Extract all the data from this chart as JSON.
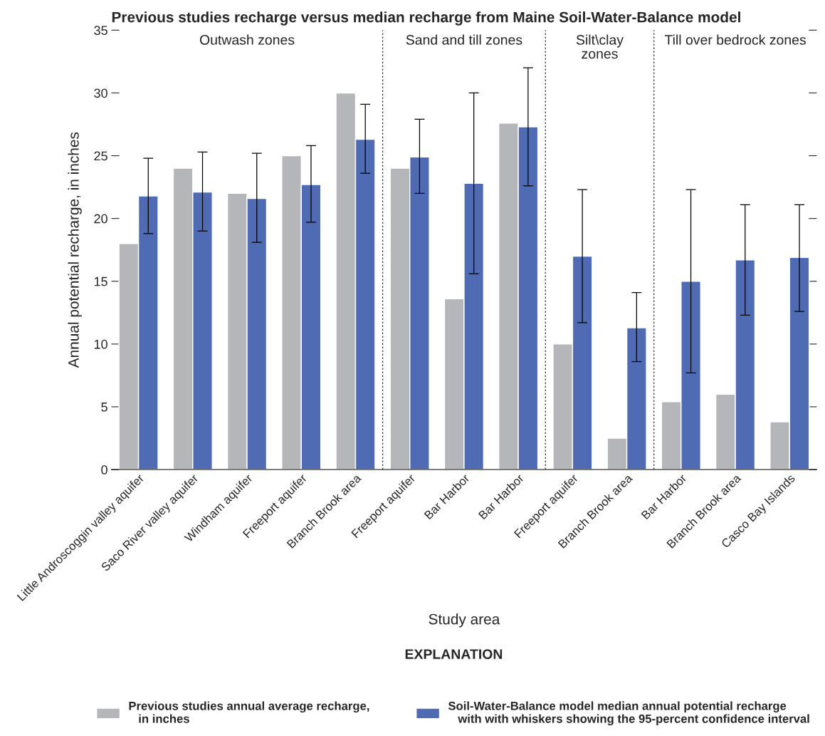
{
  "chart_data": {
    "type": "bar",
    "title": "Previous studies recharge versus median recharge from Maine Soil-Water-Balance model",
    "xlabel": "Study area",
    "ylabel": "Annual potential recharge, in inches",
    "legend_title": "EXPLANATION",
    "categories": [
      "Little Androscoggin valley aquifer",
      "Saco River valley aquifer",
      "Windham aquifer",
      "Freeport aquifer",
      "Branch Brook area",
      "Freeport aquifer",
      "Bar Harbor",
      "Bar Harbor",
      "Freeport aquifer",
      "Branch Brook area",
      "Bar Harbor",
      "Branch Brook area",
      "Casco Bay Islands"
    ],
    "series": [
      {
        "name": "Previous studies annual average recharge,\n   in inches",
        "color": "#b5b6ba",
        "values": [
          18,
          24,
          22,
          25,
          30,
          24,
          13.6,
          27.6,
          10,
          2.5,
          5.4,
          6,
          3.8
        ]
      },
      {
        "name": "Soil-Water-Balance model median annual potential recharge\n   with with whiskers showing the 95-percent confidence interval",
        "color": "#4f6bb3",
        "values": [
          21.8,
          22.1,
          21.6,
          22.7,
          26.3,
          24.9,
          22.8,
          27.3,
          17,
          11.3,
          15,
          16.7,
          16.9
        ],
        "errors": [
          [
            18.8,
            24.8
          ],
          [
            19.0,
            25.3
          ],
          [
            18.1,
            25.2
          ],
          [
            19.7,
            25.8
          ],
          [
            23.6,
            29.1
          ],
          [
            22.0,
            27.9
          ],
          [
            15.6,
            30.0
          ],
          [
            22.6,
            32.0
          ],
          [
            11.7,
            22.3
          ],
          [
            8.6,
            14.1
          ],
          [
            7.7,
            22.3
          ],
          [
            12.3,
            21.1
          ],
          [
            12.6,
            21.1
          ]
        ]
      }
    ],
    "ylim": [
      0,
      35
    ],
    "yticks": [
      0,
      5,
      10,
      15,
      20,
      25,
      30,
      35
    ],
    "annotations": [
      "Outwash zones",
      "Sand and till zones",
      "Silt\\clay\nzones",
      "Till over bedrock zones"
    ],
    "grid": false,
    "legend": "bottom"
  }
}
